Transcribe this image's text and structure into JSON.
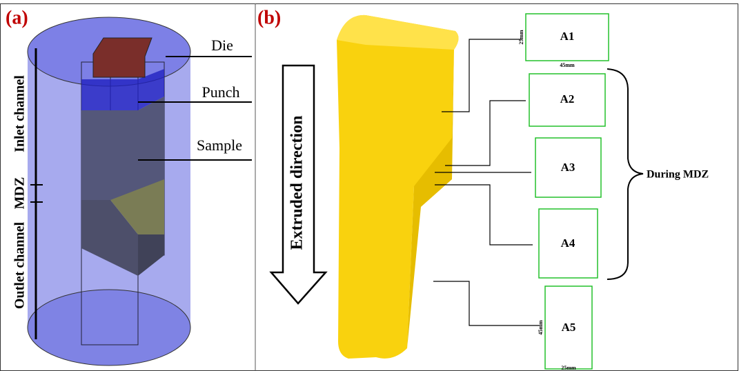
{
  "panel_a": {
    "label": "(a)",
    "parts": [
      "Die",
      "Punch",
      "Sample"
    ],
    "channels": [
      "Outlet channel",
      "MDZ",
      "Inlet channel"
    ]
  },
  "panel_b": {
    "label": "(b)",
    "direction": "Extruded direction",
    "sections": [
      {
        "name": "A1",
        "height": "25mm",
        "width": "45mm"
      },
      {
        "name": "A2"
      },
      {
        "name": "A3"
      },
      {
        "name": "A4"
      },
      {
        "name": "A5",
        "height": "45mm",
        "width": "25mm"
      }
    ],
    "group_label": "During MDZ"
  }
}
